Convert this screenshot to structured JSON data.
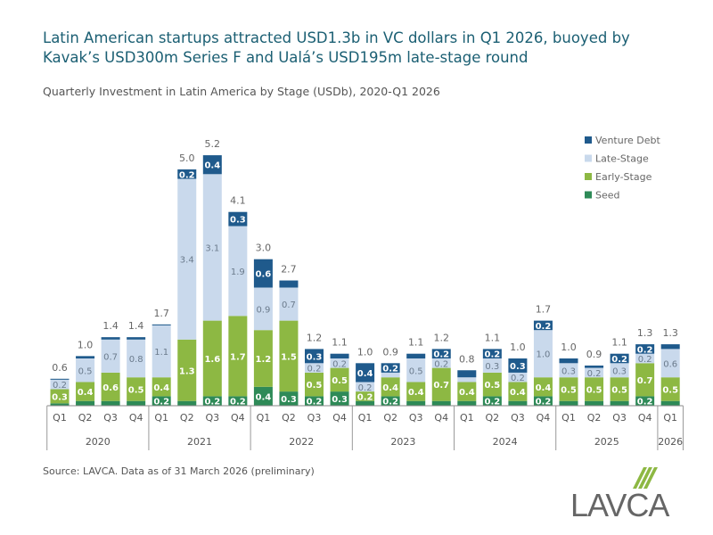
{
  "title": "Latin American startups attracted USD1.3b in VC dollars in Q1 2026, buoyed by Kavak’s USD300m Series F and Ualá’s USD195m late-stage round",
  "source": "Source: LAVCA. Data as of 31 March 2026 (preliminary)",
  "logo": {
    "text": "LAVCA",
    "color": "#8db843"
  },
  "chart_data": {
    "type": "bar",
    "stacked": true,
    "title": "Quarterly Investment in Latin America by Stage (USDb), 2020-Q1 2026",
    "ylim": [
      0,
      5.5
    ],
    "grid": false,
    "legend_position": "top-right",
    "categories": [
      "Q1",
      "Q2",
      "Q3",
      "Q4",
      "Q1",
      "Q2",
      "Q3",
      "Q4",
      "Q1",
      "Q2",
      "Q3",
      "Q4",
      "Q1",
      "Q2",
      "Q3",
      "Q4",
      "Q1",
      "Q2",
      "Q3",
      "Q4",
      "Q1",
      "Q2",
      "Q3",
      "Q4",
      "Q1"
    ],
    "years": [
      {
        "label": "2020",
        "count": 4
      },
      {
        "label": "2021",
        "count": 4
      },
      {
        "label": "2022",
        "count": 4
      },
      {
        "label": "2023",
        "count": 4
      },
      {
        "label": "2024",
        "count": 4
      },
      {
        "label": "2025",
        "count": 4
      },
      {
        "label": "2026",
        "count": 1
      }
    ],
    "totals": [
      "0.6",
      "1.0",
      "1.4",
      "1.4",
      "1.7",
      "5.0",
      "5.2",
      "4.1",
      "3.0",
      "2.7",
      "1.2",
      "1.1",
      "1.0",
      "0.9",
      "1.1",
      "1.2",
      "0.8",
      "1.1",
      "1.0",
      "1.7",
      "1.0",
      "0.9",
      "1.1",
      "1.3",
      "1.3"
    ],
    "series": [
      {
        "name": "Seed",
        "color": "#2e8a57",
        "label_color": "#ffffff",
        "values": [
          0.05,
          0.1,
          0.1,
          0.1,
          0.2,
          0.1,
          0.2,
          0.2,
          0.4,
          0.3,
          0.2,
          0.3,
          0.1,
          0.2,
          0.1,
          0.1,
          0.1,
          0.2,
          0.1,
          0.2,
          0.1,
          0.1,
          0.1,
          0.2,
          0.1
        ],
        "labels": [
          "",
          "",
          "",
          "",
          "0.2",
          "",
          "0.2",
          "0.2",
          "0.4",
          "0.3",
          "0.2",
          "0.3",
          "",
          "0.2",
          "",
          "",
          "",
          "0.2",
          "",
          "0.2",
          "",
          "",
          "",
          "0.2",
          ""
        ]
      },
      {
        "name": "Early-Stage",
        "color": "#8db843",
        "label_color": "#ffffff",
        "values": [
          0.3,
          0.4,
          0.6,
          0.5,
          0.4,
          1.3,
          1.6,
          1.7,
          1.2,
          1.5,
          0.5,
          0.5,
          0.2,
          0.4,
          0.4,
          0.7,
          0.4,
          0.5,
          0.4,
          0.4,
          0.5,
          0.5,
          0.5,
          0.7,
          0.5
        ],
        "labels": [
          "0.3",
          "0.4",
          "0.6",
          "0.5",
          "0.4",
          "1.3",
          "1.6",
          "1.7",
          "1.2",
          "1.5",
          "0.5",
          "0.5",
          "0.2",
          "0.4",
          "0.4",
          "0.7",
          "0.4",
          "0.5",
          "0.4",
          "0.4",
          "0.5",
          "0.5",
          "0.5",
          "0.7",
          "0.5"
        ]
      },
      {
        "name": "Late-Stage",
        "color": "#c9d9ec",
        "label_color": "#6b7b8c",
        "values": [
          0.2,
          0.5,
          0.7,
          0.8,
          1.1,
          3.4,
          3.1,
          1.9,
          0.9,
          0.7,
          0.2,
          0.2,
          0.2,
          0.1,
          0.5,
          0.2,
          0.1,
          0.3,
          0.2,
          1.0,
          0.3,
          0.2,
          0.3,
          0.2,
          0.6
        ],
        "labels": [
          "0.2",
          "0.5",
          "0.7",
          "0.8",
          "1.1",
          "3.4",
          "3.1",
          "1.9",
          "0.9",
          "0.7",
          "0.2",
          "0.2",
          "0.2",
          "",
          "0.5",
          "0.2",
          "",
          "0.3",
          "0.2",
          "1.0",
          "0.3",
          "0.2",
          "0.3",
          "0.2",
          "0.6"
        ]
      },
      {
        "name": "Venture Debt",
        "color": "#1f5a8c",
        "label_color": "#ffffff",
        "values": [
          0.02,
          0.05,
          0.05,
          0.05,
          0.02,
          0.2,
          0.4,
          0.3,
          0.6,
          0.15,
          0.3,
          0.1,
          0.4,
          0.2,
          0.1,
          0.2,
          0.15,
          0.2,
          0.3,
          0.2,
          0.1,
          0.05,
          0.2,
          0.2,
          0.1
        ],
        "labels": [
          "",
          "",
          "",
          "",
          "",
          "0.2",
          "0.4",
          "0.3",
          "0.6",
          "",
          "0.3",
          "",
          "0.4",
          "0.2",
          "",
          "0.2",
          "",
          "0.2",
          "0.3",
          "0.2",
          "",
          "",
          "0.2",
          "0.2",
          ""
        ]
      }
    ],
    "legend_order": [
      "Venture Debt",
      "Late-Stage",
      "Early-Stage",
      "Seed"
    ]
  }
}
